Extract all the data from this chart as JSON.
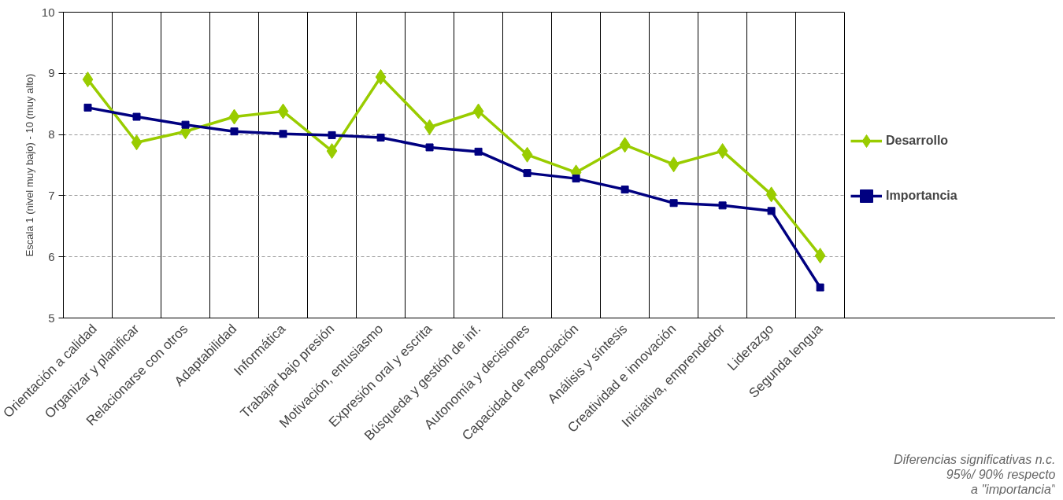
{
  "chart_data": {
    "type": "line",
    "ylabel": "Escala 1 (nivel muy bajo) - 10 (muy alto)",
    "categories": [
      "Orientación a calidad",
      "Organizar y planificar",
      "Relacionarse con otros",
      "Adaptabilidad",
      "Informática",
      "Trabajar bajo presión",
      "Motivación, entusiasmo",
      "Expresión oral y escrita",
      "Búsqueda y gestión de inf.",
      "Autonomía y decisiones",
      "Capacidad de negociación",
      "Análisis y síntesis",
      "Creatividad e innovación",
      "Iniciativa, emprendedor",
      "Liderazgo",
      "Segunda lengua"
    ],
    "series": [
      {
        "name": "Desarrollo",
        "color": "#99cc00",
        "marker": "diamond",
        "values": [
          8.9,
          7.87,
          8.05,
          8.29,
          8.38,
          7.73,
          8.94,
          8.12,
          8.38,
          7.67,
          7.38,
          7.83,
          7.51,
          7.73,
          7.02,
          6.02
        ]
      },
      {
        "name": "Importancia",
        "color": "#000080",
        "marker": "square",
        "values": [
          8.44,
          8.29,
          8.16,
          8.05,
          8.01,
          7.99,
          7.95,
          7.79,
          7.72,
          7.37,
          7.28,
          7.1,
          6.88,
          6.84,
          6.75,
          5.5
        ]
      }
    ],
    "ylim": [
      5,
      10
    ],
    "yticks": [
      5,
      6,
      7,
      8,
      9,
      10
    ],
    "grid": true,
    "legend": "right",
    "line_style": "solid",
    "annotations": [
      "Diferencias significativas n.c. 95%/ 90% respecto a \"importancia\""
    ]
  }
}
